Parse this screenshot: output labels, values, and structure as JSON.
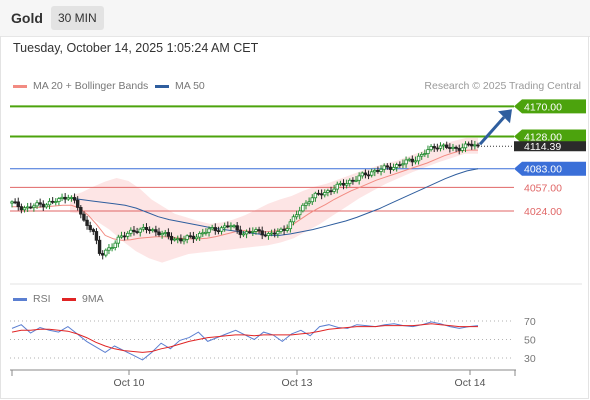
{
  "header": {
    "instrument": "Gold",
    "timeframe": "30 MIN",
    "datetime": "Tuesday, October 14, 2025 1:05:24 AM CET",
    "copyright": "Research © 2025 Trading Central"
  },
  "legend": {
    "ma20": {
      "label": "MA 20 + Bollinger Bands",
      "color": "#f28b82"
    },
    "ma50": {
      "label": "MA 50",
      "color": "#2f5e9e"
    }
  },
  "rsi_legend": {
    "rsi": {
      "label": "RSI",
      "color": "#5b7fd1"
    },
    "ma9": {
      "label": "9MA",
      "color": "#e02424"
    }
  },
  "colors": {
    "resistance": "#4ca30d",
    "pivot": "#3a6fd8",
    "support": "#e06666",
    "candle_up": "#1f8b2e",
    "candle_down": "#222222",
    "arrow": "#2f5e9e"
  },
  "chart_data": [
    {
      "type": "candlestick",
      "title": "Gold 30 MIN",
      "x_ticks": [
        "Oct 10",
        "Oct 13",
        "Oct 14"
      ],
      "ylim": [
        3935,
        4185
      ],
      "last_price": "4114.39",
      "levels": [
        {
          "value": 4170,
          "label": "4170.00",
          "kind": "resistance"
        },
        {
          "value": 4128,
          "label": "4128.00",
          "kind": "resistance"
        },
        {
          "value": 4083,
          "label": "4083.00",
          "kind": "pivot"
        },
        {
          "value": 4057,
          "label": "4057.00",
          "kind": "support"
        },
        {
          "value": 4024,
          "label": "4024.00",
          "kind": "support"
        }
      ],
      "close_path": [
        4035,
        4030,
        4028,
        4032,
        4034,
        4036,
        4040,
        4046,
        4034,
        4008,
        4000,
        3960,
        3972,
        3982,
        3990,
        3998,
        3996,
        4000,
        3995,
        3990,
        3986,
        3984,
        3986,
        3990,
        3995,
        3998,
        4000,
        4004,
        3998,
        3992,
        3996,
        3995,
        3990,
        3994,
        4000,
        4012,
        4028,
        4041,
        4046,
        4050,
        4056,
        4060,
        4066,
        4070,
        4075,
        4080,
        4082,
        4085,
        4088,
        4092,
        4096,
        4102,
        4110,
        4116,
        4113,
        4110,
        4114,
        4116,
        4114.39
      ],
      "ma20": [
        4030,
        4030,
        4028,
        4029,
        4030,
        4031,
        4032,
        4032,
        4028,
        4018,
        4005,
        3990,
        3985,
        3983,
        3984,
        3986,
        3987,
        3988,
        3988,
        3987,
        3986,
        3985,
        3985,
        3986,
        3988,
        3991,
        3994,
        3997,
        3996,
        3995,
        3995,
        3996,
        3998,
        4004,
        4012,
        4020,
        4027,
        4033,
        4040,
        4046,
        4052,
        4057,
        4062,
        4067,
        4071,
        4075,
        4079,
        4083,
        4087,
        4091,
        4096,
        4101,
        4105,
        4108,
        4109,
        4109
      ],
      "ma50": [
        4042,
        4040,
        4038,
        4036,
        4034,
        4032,
        4028,
        4022,
        4016,
        4012,
        4009,
        4006,
        4003,
        4000,
        3998,
        3996,
        3994,
        3992,
        3990,
        3990,
        3992,
        3995,
        3998,
        4002,
        4006,
        4010,
        4015,
        4021,
        4027,
        4034,
        4041,
        4048,
        4055,
        4062,
        4069,
        4075,
        4080,
        4083
      ],
      "bb_upper": [
        4045,
        4050,
        4058,
        4065,
        4070,
        4066,
        4055,
        4040,
        4030,
        4020,
        4015,
        4010,
        4006,
        4008,
        4012,
        4018,
        4026,
        4034,
        4040,
        4045,
        4052,
        4058,
        4062,
        4068,
        4074,
        4080,
        4085,
        4090,
        4094,
        4100,
        4106,
        4112,
        4118,
        4122,
        4126,
        4126
      ],
      "bb_lower": [
        4022,
        4020,
        4010,
        3998,
        3982,
        3968,
        3958,
        3952,
        3958,
        3964,
        3966,
        3968,
        3970,
        3972,
        3974,
        3976,
        3980,
        3986,
        3996,
        4006,
        4018,
        4030,
        4042,
        4052,
        4062,
        4070,
        4078,
        4085,
        4092,
        4098,
        4104,
        4104
      ]
    },
    {
      "type": "line",
      "title": "RSI",
      "ylim": [
        20,
        80
      ],
      "y_ticks": [
        70,
        50,
        30
      ],
      "series": [
        {
          "name": "RSI",
          "values": [
            62,
            66,
            57,
            63,
            60,
            58,
            64,
            56,
            48,
            42,
            36,
            43,
            38,
            33,
            28,
            36,
            46,
            40,
            49,
            52,
            58,
            48,
            52,
            56,
            60,
            55,
            50,
            58,
            55,
            48,
            56,
            60,
            54,
            64,
            66,
            63,
            62,
            66,
            65,
            64,
            66,
            67,
            65,
            64,
            66,
            69,
            67,
            64,
            62,
            64,
            65
          ]
        },
        {
          "name": "9MA",
          "values": [
            58,
            60,
            60,
            61,
            61,
            60,
            59,
            56,
            52,
            47,
            43,
            40,
            38,
            37,
            36,
            37,
            40,
            42,
            45,
            48,
            50,
            52,
            53,
            54,
            55,
            55,
            54,
            55,
            55,
            55,
            55,
            56,
            57,
            59,
            61,
            62,
            63,
            64,
            64,
            64,
            65,
            65,
            65,
            65,
            66,
            67,
            66,
            65,
            64,
            64,
            64
          ]
        }
      ]
    }
  ]
}
